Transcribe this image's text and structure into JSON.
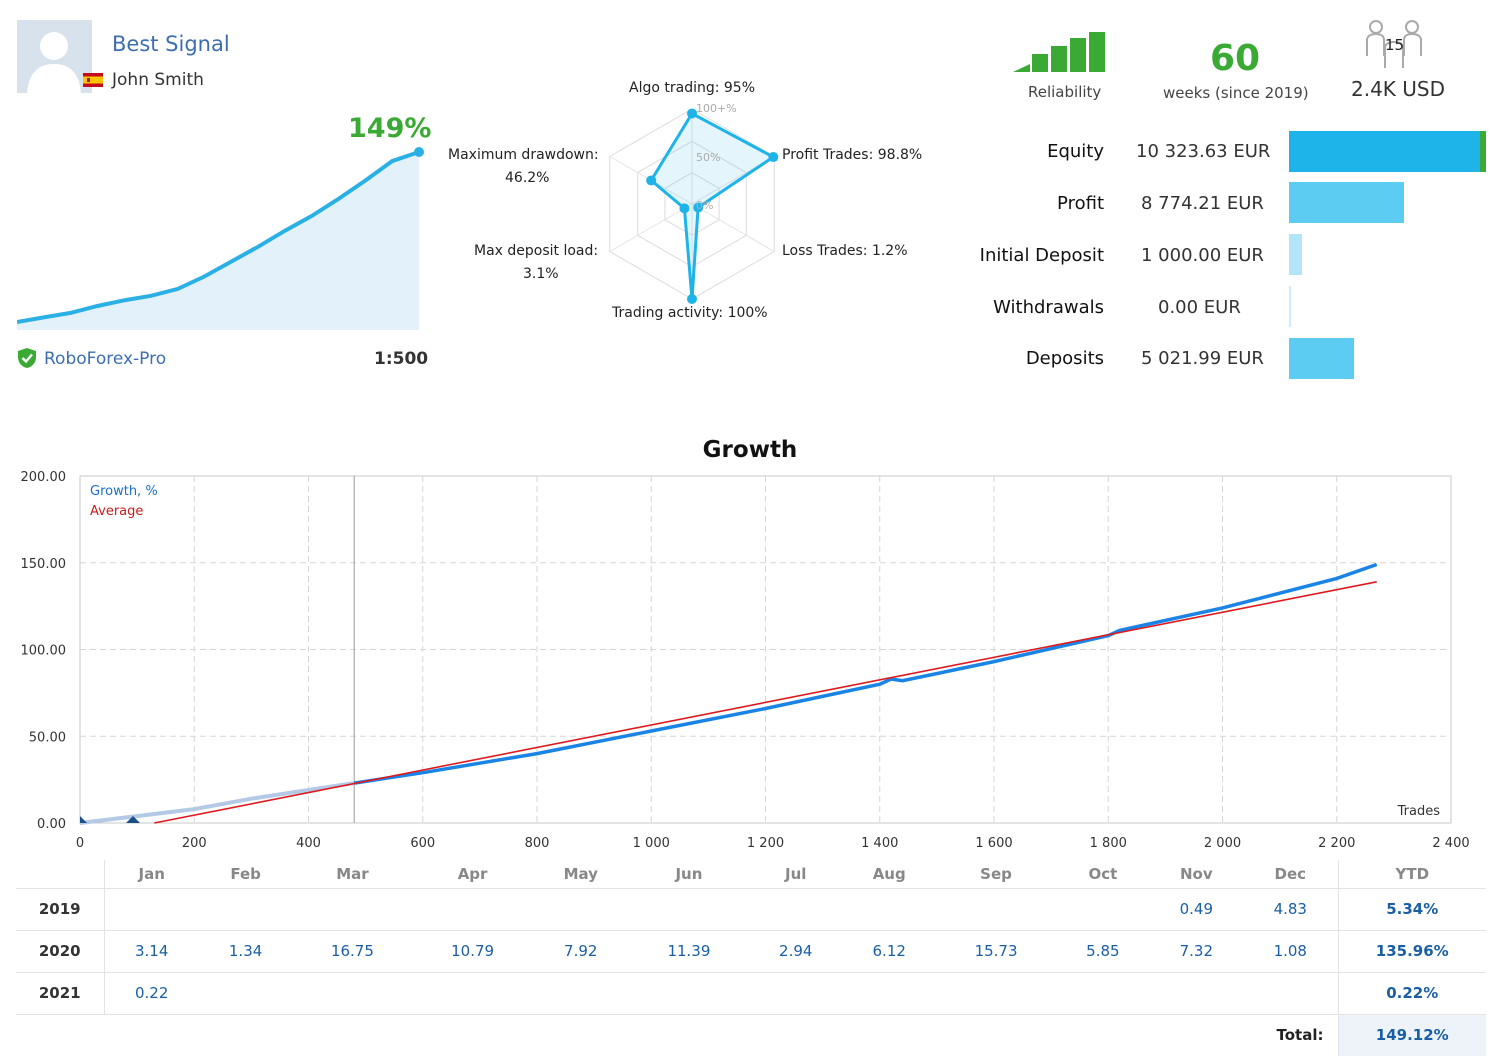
{
  "colors": {
    "green": "#3aaa35",
    "blue_link": "#3d6fb0",
    "cyan": "#1eb4ea",
    "growth_line": "#1a83e6",
    "average_line": "#e0191d",
    "grid": "#d0d0d0"
  },
  "header": {
    "signal_name": "Best Signal",
    "owner_name": "John Smith",
    "gain": "149%",
    "broker": "RoboForex-Pro",
    "leverage": "1:500"
  },
  "radar": {
    "labels": {
      "algo": "Algo trading: 95%",
      "profit_trades": "Profit Trades: 98.8%",
      "loss_trades": "Loss Trades: 1.2%",
      "activity": "Trading activity: 100%",
      "deposit_load_label": "Max deposit load:",
      "deposit_load_value": "3.1%",
      "drawdown_label": "Maximum drawdown:",
      "drawdown_value": "46.2%"
    },
    "scale": {
      "top": "100+%",
      "mid": "50%",
      "low": "0%"
    },
    "values": [
      0.95,
      0.988,
      0.012,
      1.0,
      0.031,
      0.462
    ]
  },
  "summary": {
    "reliability_label": "Reliability",
    "reliability_bars_filled": 5,
    "weeks": "60",
    "weeks_label": "weeks (since 2019)",
    "subscribers": "15",
    "funds": "2.4K USD"
  },
  "stats": [
    {
      "label": "Equity",
      "value": "10 323.63 EUR",
      "ratio": 1.0,
      "color": "#1eb4ea"
    },
    {
      "label": "Profit",
      "value": "8 774.21 EUR",
      "ratio": 0.6,
      "color": "#5cccf2"
    },
    {
      "label": "Initial Deposit",
      "value": "1 000.00 EUR",
      "ratio": 0.07,
      "color": "#b3e5f8"
    },
    {
      "label": "Withdrawals",
      "value": "0.00 EUR",
      "ratio": 0.0,
      "color": "#cdeefb"
    },
    {
      "label": "Deposits",
      "value": "5 021.99 EUR",
      "ratio": 0.34,
      "color": "#5cccf2"
    }
  ],
  "growth_chart": {
    "title": "Growth",
    "legend_growth": "Growth, %",
    "legend_average": "Average",
    "x_axis_label": "Trades"
  },
  "chart_data": {
    "type": "line",
    "title": "Growth",
    "xlabel": "Trades",
    "ylabel": "",
    "xlim": [
      0,
      2400
    ],
    "ylim": [
      0,
      200
    ],
    "x_ticks": [
      "0",
      "200",
      "400",
      "600",
      "800",
      "1 000",
      "1 200",
      "1 400",
      "1 600",
      "1 800",
      "2 000",
      "2 200",
      "2 400"
    ],
    "y_ticks": [
      "0.00",
      "50.00",
      "100.00",
      "150.00",
      "200.00"
    ],
    "series": [
      {
        "name": "Growth, %",
        "x": [
          0,
          100,
          200,
          300,
          400,
          480,
          600,
          800,
          1000,
          1200,
          1400,
          1420,
          1440,
          1600,
          1800,
          1820,
          2000,
          2200,
          2270
        ],
        "values": [
          0,
          4,
          8,
          14,
          19,
          23,
          29,
          40,
          53,
          66,
          80,
          83,
          82,
          93,
          108,
          111,
          124,
          141,
          149
        ]
      },
      {
        "name": "Average",
        "x": [
          130,
          2270
        ],
        "values": [
          0,
          139
        ]
      }
    ],
    "split_marker_x": 480,
    "mini_growth": [
      0,
      4,
      8,
      14,
      19,
      23,
      29,
      40,
      53,
      66,
      80,
      93,
      108,
      124,
      141,
      149
    ]
  },
  "monthly": {
    "months": [
      "Jan",
      "Feb",
      "Mar",
      "Apr",
      "May",
      "Jun",
      "Jul",
      "Aug",
      "Sep",
      "Oct",
      "Nov",
      "Dec"
    ],
    "ytd_label": "YTD",
    "rows": [
      {
        "year": "2019",
        "values": [
          "",
          "",
          "",
          "",
          "",
          "",
          "",
          "",
          "",
          "",
          "0.49",
          "4.83"
        ],
        "ytd": "5.34%"
      },
      {
        "year": "2020",
        "values": [
          "3.14",
          "1.34",
          "16.75",
          "10.79",
          "7.92",
          "11.39",
          "2.94",
          "6.12",
          "15.73",
          "5.85",
          "7.32",
          "1.08"
        ],
        "ytd": "135.96%"
      },
      {
        "year": "2021",
        "values": [
          "0.22",
          "",
          "",
          "",
          "",
          "",
          "",
          "",
          "",
          "",
          "",
          ""
        ],
        "ytd": "0.22%"
      }
    ],
    "total_label": "Total:",
    "total_value": "149.12%"
  }
}
